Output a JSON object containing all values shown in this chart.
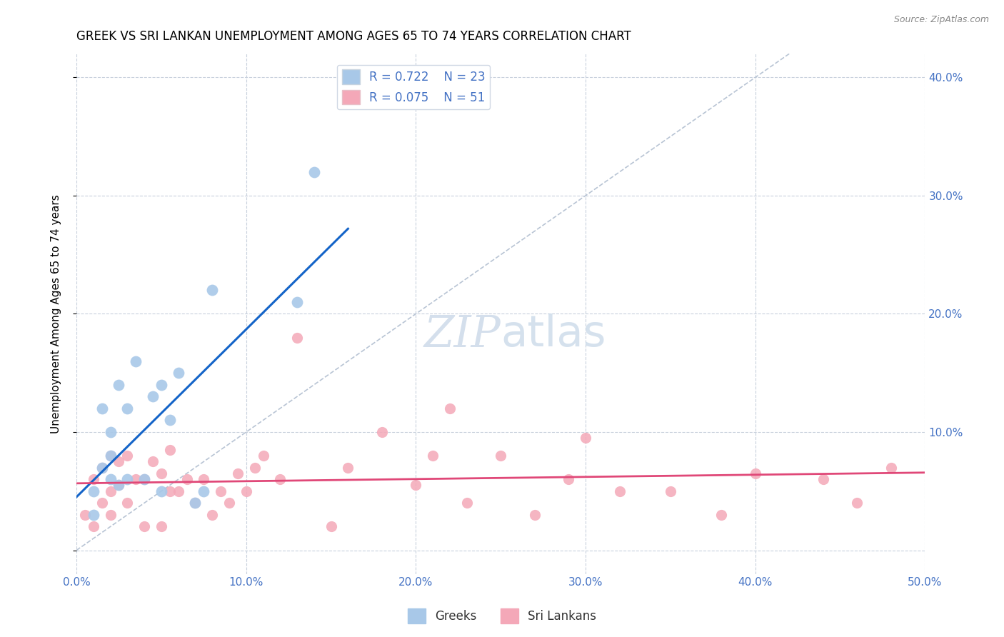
{
  "title": "GREEK VS SRI LANKAN UNEMPLOYMENT AMONG AGES 65 TO 74 YEARS CORRELATION CHART",
  "source": "Source: ZipAtlas.com",
  "ylabel": "Unemployment Among Ages 65 to 74 years",
  "xlim": [
    0.0,
    50.0
  ],
  "ylim": [
    -2.0,
    42.0
  ],
  "xticks": [
    0.0,
    10.0,
    20.0,
    30.0,
    40.0,
    50.0
  ],
  "xticklabels": [
    "0.0%",
    "10.0%",
    "20.0%",
    "30.0%",
    "40.0%",
    "50.0%"
  ],
  "yticks_right": [
    10.0,
    20.0,
    30.0,
    40.0
  ],
  "yticklabels_right": [
    "10.0%",
    "20.0%",
    "30.0%",
    "40.0%"
  ],
  "grid_yticks": [
    0.0,
    10.0,
    20.0,
    30.0,
    40.0
  ],
  "grid_xticks": [
    0.0,
    10.0,
    20.0,
    30.0,
    40.0,
    50.0
  ],
  "watermark_zip": "ZIP",
  "watermark_atlas": "atlas",
  "greek_R": "0.722",
  "greek_N": "23",
  "srilanka_R": "0.075",
  "srilanka_N": "51",
  "greeks_color": "#a8c8e8",
  "srilanka_color": "#f4a8b8",
  "greek_line_color": "#1464c8",
  "srilanka_line_color": "#e04878",
  "diagonal_color": "#b8c4d4",
  "background_color": "#ffffff",
  "title_color": "#000000",
  "tick_color": "#4472c4",
  "ylabel_color": "#000000",
  "greeks_x": [
    1.0,
    1.0,
    1.5,
    1.5,
    2.0,
    2.0,
    2.0,
    2.5,
    2.5,
    3.0,
    3.0,
    3.5,
    4.0,
    4.5,
    5.0,
    5.0,
    5.5,
    6.0,
    7.0,
    7.5,
    8.0,
    13.0,
    14.0
  ],
  "greeks_y": [
    3.0,
    5.0,
    7.0,
    12.0,
    6.0,
    8.0,
    10.0,
    5.5,
    14.0,
    6.0,
    12.0,
    16.0,
    6.0,
    13.0,
    5.0,
    14.0,
    11.0,
    15.0,
    4.0,
    5.0,
    22.0,
    21.0,
    32.0
  ],
  "srilanka_x": [
    0.5,
    1.0,
    1.0,
    1.5,
    1.5,
    2.0,
    2.0,
    2.0,
    2.5,
    2.5,
    3.0,
    3.0,
    3.5,
    4.0,
    4.0,
    4.5,
    5.0,
    5.0,
    5.5,
    5.5,
    6.0,
    6.5,
    7.0,
    7.5,
    8.0,
    8.5,
    9.0,
    9.5,
    10.0,
    10.5,
    11.0,
    12.0,
    13.0,
    15.0,
    16.0,
    18.0,
    20.0,
    21.0,
    22.0,
    23.0,
    25.0,
    27.0,
    29.0,
    30.0,
    32.0,
    35.0,
    38.0,
    40.0,
    44.0,
    46.0,
    48.0
  ],
  "srilanka_y": [
    3.0,
    2.0,
    6.0,
    4.0,
    7.0,
    3.0,
    5.0,
    8.0,
    5.5,
    7.5,
    4.0,
    8.0,
    6.0,
    2.0,
    6.0,
    7.5,
    2.0,
    6.5,
    5.0,
    8.5,
    5.0,
    6.0,
    4.0,
    6.0,
    3.0,
    5.0,
    4.0,
    6.5,
    5.0,
    7.0,
    8.0,
    6.0,
    18.0,
    2.0,
    7.0,
    10.0,
    5.5,
    8.0,
    12.0,
    4.0,
    8.0,
    3.0,
    6.0,
    9.5,
    5.0,
    5.0,
    3.0,
    6.5,
    6.0,
    4.0,
    7.0
  ],
  "title_fontsize": 12,
  "axis_label_fontsize": 11,
  "tick_fontsize": 11,
  "legend_fontsize": 12,
  "watermark_fontsize_zip": 44,
  "watermark_fontsize_atlas": 44
}
